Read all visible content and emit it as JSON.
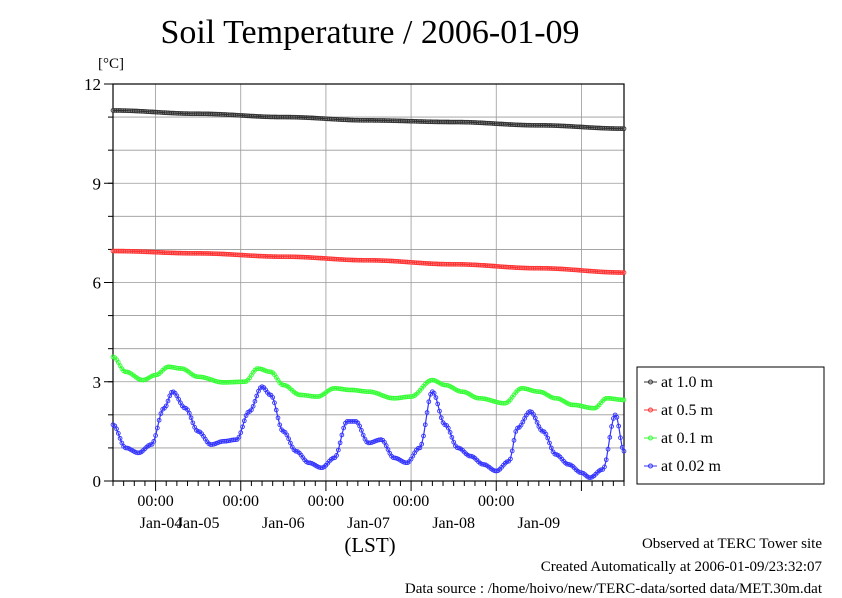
{
  "chart_data": {
    "type": "line",
    "title": "Soil Temperature / 2006-01-09",
    "ylabel": "[°C]",
    "xlabel": "(LST)",
    "ylim": [
      0,
      12
    ],
    "yticks": [
      "0",
      "3",
      "6",
      "9",
      "12"
    ],
    "x_range_days": [
      "2006-01-03 12:00",
      "2006-01-09 24:00"
    ],
    "xtick_time_labels": [
      "00:00",
      "00:00",
      "00:00",
      "00:00",
      "00:00"
    ],
    "xtick_date_labels": [
      "Jan-04",
      "Jan-05",
      "Jan-06",
      "Jan-07",
      "Jan-08",
      "Jan-09"
    ],
    "grid": true,
    "legend_position": "right",
    "series": [
      {
        "name": "at 1.0 m",
        "color": "#333333",
        "key": "d100",
        "x": [
          0,
          1,
          2,
          3,
          4,
          5,
          6
        ],
        "values": [
          11.2,
          11.1,
          11.0,
          10.9,
          10.85,
          10.75,
          10.65
        ]
      },
      {
        "name": "at 0.5 m",
        "color": "#ff3333",
        "key": "d050",
        "x": [
          0,
          1,
          2,
          3,
          4,
          5,
          6
        ],
        "values": [
          6.95,
          6.88,
          6.78,
          6.67,
          6.55,
          6.43,
          6.3
        ]
      },
      {
        "name": "at 0.1 m",
        "color": "#33ff33",
        "key": "d010",
        "x": [
          0,
          0.15,
          0.35,
          0.5,
          0.65,
          0.8,
          1.0,
          1.3,
          1.55,
          1.7,
          1.85,
          2.0,
          2.2,
          2.4,
          2.6,
          2.8,
          3.0,
          3.3,
          3.5,
          3.75,
          3.9,
          4.1,
          4.3,
          4.6,
          4.8,
          5.0,
          5.2,
          5.4,
          5.65,
          5.8,
          6.0
        ],
        "values": [
          3.75,
          3.3,
          3.05,
          3.2,
          3.45,
          3.4,
          3.15,
          2.98,
          3.0,
          3.4,
          3.3,
          2.9,
          2.6,
          2.55,
          2.8,
          2.75,
          2.7,
          2.5,
          2.55,
          3.05,
          2.9,
          2.7,
          2.5,
          2.35,
          2.8,
          2.7,
          2.5,
          2.3,
          2.2,
          2.5,
          2.45
        ]
      },
      {
        "name": "at 0.02 m",
        "color": "#3333ff",
        "key": "d002",
        "x": [
          0,
          0.15,
          0.3,
          0.45,
          0.6,
          0.7,
          0.85,
          1.0,
          1.15,
          1.3,
          1.45,
          1.6,
          1.75,
          1.85,
          2.0,
          2.15,
          2.3,
          2.45,
          2.6,
          2.75,
          2.85,
          3.0,
          3.15,
          3.3,
          3.45,
          3.6,
          3.75,
          3.9,
          4.05,
          4.2,
          4.35,
          4.5,
          4.65,
          4.75,
          4.9,
          5.05,
          5.2,
          5.35,
          5.5,
          5.6,
          5.75,
          5.9,
          6.0
        ],
        "values": [
          1.7,
          1.0,
          0.85,
          1.1,
          2.2,
          2.7,
          2.2,
          1.5,
          1.1,
          1.2,
          1.25,
          2.1,
          2.85,
          2.6,
          1.5,
          0.9,
          0.55,
          0.4,
          0.7,
          1.8,
          1.8,
          1.15,
          1.25,
          0.7,
          0.55,
          1.0,
          2.7,
          1.7,
          1.0,
          0.75,
          0.5,
          0.3,
          0.6,
          1.6,
          2.1,
          1.5,
          0.8,
          0.5,
          0.25,
          0.1,
          0.35,
          2.0,
          0.9
        ]
      }
    ]
  },
  "footer": {
    "line1": "Observed at TERC Tower site",
    "line2": "Created Automatically at 2006-01-09/23:32:07",
    "line3": "Data source : /home/hoivo/new/TERC-data/sorted  data/MET.30m.dat"
  }
}
